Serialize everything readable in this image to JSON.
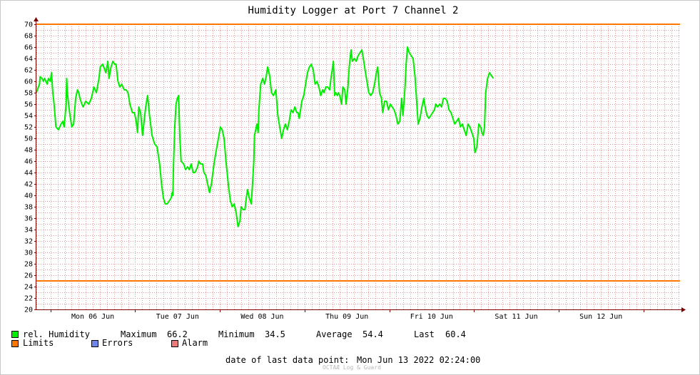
{
  "colors": {
    "humidity": "#00ee00",
    "limits": "#ff7700",
    "errors": "#6f86ef",
    "alarm": "#ef7a7a",
    "grid": "#e09a9a",
    "axis": "#800000"
  },
  "legend": {
    "humidity_label": "rel. Humidity",
    "limits_label": "Limits",
    "errors_label": "Errors",
    "alarm_label": "Alarm",
    "stats": [
      {
        "label": "Maximum",
        "value": "66.2"
      },
      {
        "label": "Minimum",
        "value": "34.5"
      },
      {
        "label": "Average",
        "value": "54.4"
      },
      {
        "label": "Last",
        "value": "60.4"
      }
    ]
  },
  "footer": {
    "last_point_label": "date of last data point:",
    "last_point_value": "Mon Jun 13 2022 02:24:00",
    "watermark": "OCTAÆ Log & Guard"
  },
  "chart_data": {
    "type": "line",
    "title": "Humidity Logger at Port 7 Channel 2",
    "xlabel": "",
    "ylabel": "",
    "ylim": [
      20,
      70
    ],
    "xlim_days": [
      0,
      7.6
    ],
    "yticks": [
      20,
      22,
      24,
      26,
      28,
      30,
      32,
      34,
      36,
      38,
      40,
      42,
      44,
      46,
      48,
      50,
      52,
      54,
      56,
      58,
      60,
      62,
      64,
      66,
      68,
      70
    ],
    "x_tick_labels": [
      "Mon 06 Jun",
      "Tue 07 Jun",
      "Wed 08 Jun",
      "Thu 09 Jun",
      "Fri 10 Jun",
      "Sat 11 Jun",
      "Sun 12 Jun"
    ],
    "grid": true,
    "limits": [
      70,
      25
    ],
    "series": [
      {
        "name": "rel. Humidity",
        "x_unit": "days since Sun 05 Jun 2022 20:00",
        "points": [
          [
            0.0,
            58.0
          ],
          [
            0.037,
            59.5
          ],
          [
            0.044,
            60.8
          ],
          [
            0.067,
            60.5
          ],
          [
            0.082,
            60.0
          ],
          [
            0.097,
            60.5
          ],
          [
            0.127,
            59.5
          ],
          [
            0.142,
            60.5
          ],
          [
            0.164,
            60.0
          ],
          [
            0.179,
            61.5
          ],
          [
            0.194,
            58.0
          ],
          [
            0.209,
            56.0
          ],
          [
            0.231,
            52.0
          ],
          [
            0.261,
            51.5
          ],
          [
            0.291,
            52.5
          ],
          [
            0.313,
            53.0
          ],
          [
            0.328,
            52.0
          ],
          [
            0.351,
            56.0
          ],
          [
            0.358,
            60.5
          ],
          [
            0.366,
            58.0
          ],
          [
            0.388,
            55.0
          ],
          [
            0.418,
            52.0
          ],
          [
            0.44,
            52.5
          ],
          [
            0.463,
            57.0
          ],
          [
            0.485,
            58.5
          ],
          [
            0.5,
            58.0
          ],
          [
            0.515,
            57.0
          ],
          [
            0.537,
            56.0
          ],
          [
            0.552,
            55.5
          ],
          [
            0.582,
            56.5
          ],
          [
            0.619,
            56.0
          ],
          [
            0.649,
            57.0
          ],
          [
            0.679,
            59.0
          ],
          [
            0.709,
            58.0
          ],
          [
            0.739,
            60.5
          ],
          [
            0.754,
            62.5
          ],
          [
            0.784,
            63.0
          ],
          [
            0.821,
            61.5
          ],
          [
            0.843,
            63.5
          ],
          [
            0.858,
            60.5
          ],
          [
            0.881,
            62.5
          ],
          [
            0.903,
            63.5
          ],
          [
            0.925,
            63.0
          ],
          [
            0.94,
            63.0
          ],
          [
            0.963,
            60.0
          ],
          [
            0.985,
            59.0
          ],
          [
            1.007,
            59.5
          ],
          [
            1.037,
            58.5
          ],
          [
            1.06,
            58.5
          ],
          [
            1.082,
            58.0
          ],
          [
            1.104,
            56.0
          ],
          [
            1.134,
            54.5
          ],
          [
            1.157,
            54.5
          ],
          [
            1.179,
            53.0
          ],
          [
            1.194,
            51.0
          ],
          [
            1.209,
            55.5
          ],
          [
            1.231,
            54.5
          ],
          [
            1.254,
            50.5
          ],
          [
            1.276,
            53.5
          ],
          [
            1.291,
            55.5
          ],
          [
            1.313,
            57.5
          ],
          [
            1.336,
            54.0
          ],
          [
            1.366,
            50.5
          ],
          [
            1.396,
            49.0
          ],
          [
            1.425,
            48.5
          ],
          [
            1.455,
            45.5
          ],
          [
            1.478,
            42.0
          ],
          [
            1.5,
            39.5
          ],
          [
            1.522,
            38.5
          ],
          [
            1.545,
            38.5
          ],
          [
            1.567,
            39.0
          ],
          [
            1.59,
            39.5
          ],
          [
            1.604,
            40.5
          ],
          [
            1.612,
            40.0
          ],
          [
            1.619,
            45.0
          ],
          [
            1.634,
            52.0
          ],
          [
            1.649,
            56.0
          ],
          [
            1.664,
            57.0
          ],
          [
            1.679,
            57.5
          ],
          [
            1.694,
            50.0
          ],
          [
            1.709,
            46.0
          ],
          [
            1.739,
            45.5
          ],
          [
            1.761,
            44.5
          ],
          [
            1.784,
            45.0
          ],
          [
            1.806,
            44.5
          ],
          [
            1.828,
            45.5
          ],
          [
            1.851,
            44.0
          ],
          [
            1.873,
            44.0
          ],
          [
            1.903,
            45.0
          ],
          [
            1.918,
            46.0
          ],
          [
            1.94,
            45.5
          ],
          [
            1.963,
            45.5
          ],
          [
            1.978,
            44.0
          ],
          [
            2.0,
            43.5
          ],
          [
            2.022,
            42.0
          ],
          [
            2.045,
            40.5
          ],
          [
            2.067,
            42.0
          ],
          [
            2.097,
            45.5
          ],
          [
            2.119,
            47.5
          ],
          [
            2.149,
            50.0
          ],
          [
            2.172,
            52.0
          ],
          [
            2.194,
            51.5
          ],
          [
            2.216,
            50.0
          ],
          [
            2.239,
            46.0
          ],
          [
            2.269,
            41.5
          ],
          [
            2.291,
            39.0
          ],
          [
            2.313,
            38.0
          ],
          [
            2.336,
            38.5
          ],
          [
            2.358,
            37.0
          ],
          [
            2.381,
            34.5
          ],
          [
            2.403,
            35.5
          ],
          [
            2.418,
            38.0
          ],
          [
            2.44,
            37.5
          ],
          [
            2.463,
            37.5
          ],
          [
            2.478,
            39.5
          ],
          [
            2.493,
            41.0
          ],
          [
            2.515,
            39.5
          ],
          [
            2.537,
            38.5
          ],
          [
            2.552,
            42.0
          ],
          [
            2.567,
            46.0
          ],
          [
            2.575,
            50.5
          ],
          [
            2.604,
            52.5
          ],
          [
            2.619,
            51.0
          ],
          [
            2.627,
            55.0
          ],
          [
            2.649,
            59.5
          ],
          [
            2.672,
            60.5
          ],
          [
            2.694,
            59.5
          ],
          [
            2.716,
            61.0
          ],
          [
            2.731,
            62.5
          ],
          [
            2.754,
            61.0
          ],
          [
            2.776,
            58.0
          ],
          [
            2.799,
            57.5
          ],
          [
            2.828,
            58.5
          ],
          [
            2.851,
            54.0
          ],
          [
            2.873,
            52.0
          ],
          [
            2.896,
            50.0
          ],
          [
            2.918,
            51.5
          ],
          [
            2.94,
            52.5
          ],
          [
            2.963,
            51.5
          ],
          [
            2.985,
            53.0
          ],
          [
            3.007,
            55.0
          ],
          [
            3.03,
            54.5
          ],
          [
            3.052,
            55.5
          ],
          [
            3.075,
            54.5
          ],
          [
            3.09,
            54.5
          ],
          [
            3.104,
            53.5
          ],
          [
            3.119,
            55.0
          ],
          [
            3.134,
            56.5
          ],
          [
            3.157,
            57.5
          ],
          [
            3.179,
            59.5
          ],
          [
            3.201,
            61.5
          ],
          [
            3.224,
            62.5
          ],
          [
            3.246,
            63.0
          ],
          [
            3.269,
            62.0
          ],
          [
            3.291,
            59.5
          ],
          [
            3.313,
            60.0
          ],
          [
            3.336,
            59.0
          ],
          [
            3.358,
            57.5
          ],
          [
            3.381,
            58.5
          ],
          [
            3.396,
            58.0
          ],
          [
            3.418,
            59.0
          ],
          [
            3.44,
            59.0
          ],
          [
            3.463,
            58.5
          ],
          [
            3.478,
            60.5
          ],
          [
            3.493,
            62.0
          ],
          [
            3.507,
            63.5
          ],
          [
            3.522,
            57.5
          ],
          [
            3.537,
            58.0
          ],
          [
            3.552,
            57.5
          ],
          [
            3.567,
            58.0
          ],
          [
            3.582,
            57.5
          ],
          [
            3.604,
            56.0
          ],
          [
            3.619,
            59.0
          ],
          [
            3.642,
            58.5
          ],
          [
            3.657,
            56.0
          ],
          [
            3.679,
            59.0
          ],
          [
            3.694,
            62.5
          ],
          [
            3.716,
            65.5
          ],
          [
            3.731,
            63.5
          ],
          [
            3.754,
            64.0
          ],
          [
            3.776,
            63.5
          ],
          [
            3.799,
            64.5
          ],
          [
            3.821,
            65.0
          ],
          [
            3.843,
            65.5
          ],
          [
            3.866,
            63.5
          ],
          [
            3.881,
            62.0
          ],
          [
            3.903,
            60.0
          ],
          [
            3.925,
            58.0
          ],
          [
            3.948,
            57.5
          ],
          [
            3.97,
            58.0
          ],
          [
            3.993,
            59.5
          ],
          [
            4.015,
            61.5
          ],
          [
            4.03,
            62.5
          ],
          [
            4.052,
            58.0
          ],
          [
            4.075,
            57.0
          ],
          [
            4.09,
            54.5
          ],
          [
            4.112,
            56.5
          ],
          [
            4.134,
            56.5
          ],
          [
            4.157,
            55.0
          ],
          [
            4.179,
            56.0
          ],
          [
            4.201,
            55.5
          ],
          [
            4.224,
            55.0
          ],
          [
            4.246,
            54.0
          ],
          [
            4.269,
            52.5
          ],
          [
            4.291,
            53.0
          ],
          [
            4.313,
            57.0
          ],
          [
            4.328,
            54.0
          ],
          [
            4.351,
            58.5
          ],
          [
            4.366,
            63.0
          ],
          [
            4.381,
            66.0
          ],
          [
            4.403,
            65.0
          ],
          [
            4.425,
            64.5
          ],
          [
            4.448,
            64.0
          ],
          [
            4.47,
            61.0
          ],
          [
            4.493,
            56.0
          ],
          [
            4.508,
            52.5
          ],
          [
            4.53,
            53.5
          ],
          [
            4.552,
            55.5
          ],
          [
            4.575,
            57.0
          ],
          [
            4.59,
            55.5
          ],
          [
            4.612,
            54.0
          ],
          [
            4.634,
            53.5
          ],
          [
            4.657,
            54.0
          ],
          [
            4.679,
            54.5
          ],
          [
            4.701,
            55.0
          ],
          [
            4.716,
            56.0
          ],
          [
            4.739,
            55.5
          ],
          [
            4.761,
            56.0
          ],
          [
            4.784,
            55.5
          ],
          [
            4.806,
            57.0
          ],
          [
            4.828,
            57.0
          ],
          [
            4.851,
            56.5
          ],
          [
            4.873,
            55.0
          ],
          [
            4.896,
            54.5
          ],
          [
            4.918,
            53.5
          ],
          [
            4.94,
            52.5
          ],
          [
            4.963,
            53.0
          ],
          [
            4.985,
            53.5
          ],
          [
            5.007,
            52.0
          ],
          [
            5.03,
            52.5
          ],
          [
            5.052,
            51.5
          ],
          [
            5.075,
            50.5
          ],
          [
            5.097,
            52.5
          ],
          [
            5.119,
            52.0
          ],
          [
            5.142,
            51.0
          ],
          [
            5.164,
            50.0
          ],
          [
            5.179,
            47.5
          ],
          [
            5.201,
            48.5
          ],
          [
            5.224,
            52.5
          ],
          [
            5.246,
            52.0
          ],
          [
            5.261,
            51.0
          ],
          [
            5.276,
            50.5
          ],
          [
            5.291,
            52.0
          ],
          [
            5.306,
            58.0
          ],
          [
            5.328,
            60.5
          ],
          [
            5.351,
            61.5
          ],
          [
            5.373,
            61.0
          ],
          [
            5.396,
            60.5
          ]
        ]
      }
    ]
  }
}
